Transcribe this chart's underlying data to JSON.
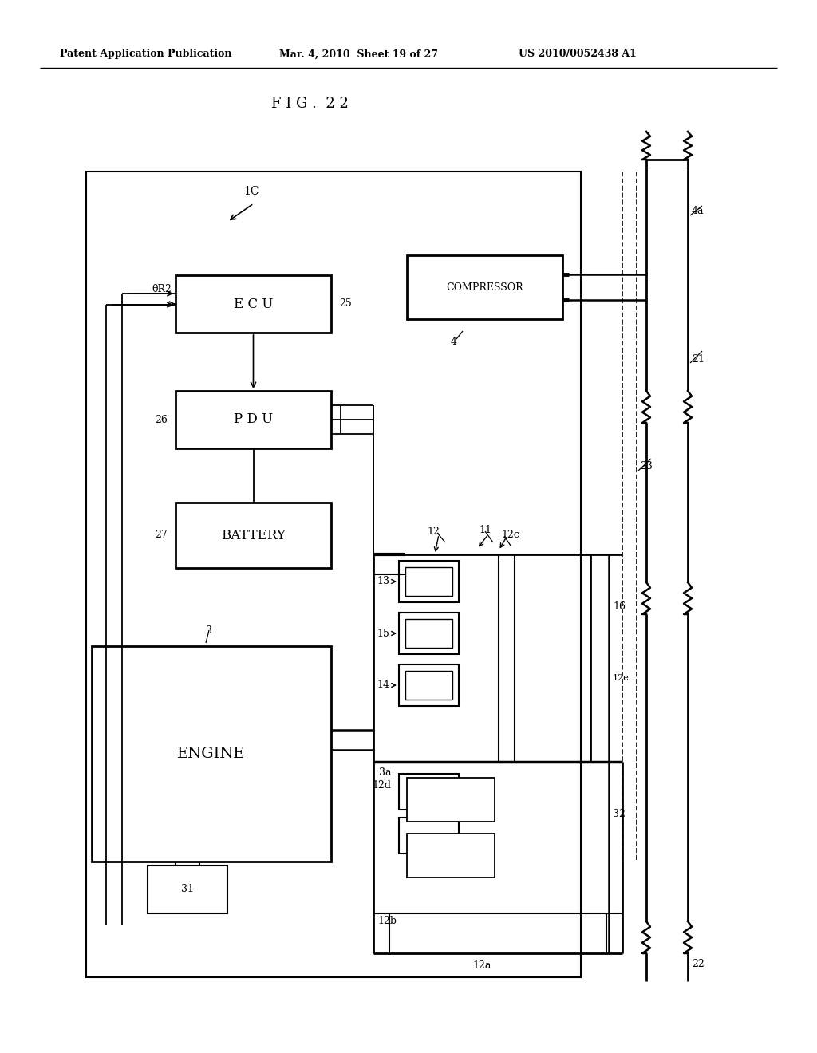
{
  "bg_color": "#ffffff",
  "text_color": "#000000",
  "header_left": "Patent Application Publication",
  "header_mid": "Mar. 4, 2010  Sheet 19 of 27",
  "header_right": "US 2010/0052438 A1",
  "fig_label": "F I G .  2 2",
  "label_1C": "1C",
  "label_ecu": "E C U",
  "label_ecu_ref": "25",
  "label_pdu": "P D U",
  "label_pdu_ref": "26",
  "label_battery": "BATTERY",
  "label_battery_ref": "27",
  "label_engine": "ENGINE",
  "label_engine_ref": "3",
  "label_compressor": "COMPRESSOR",
  "label_comp_ref": "4",
  "label_4a": "4a",
  "label_21": "21",
  "label_23": "23",
  "label_11": "11",
  "label_12": "12",
  "label_12a": "12a",
  "label_12b": "12b",
  "label_12c": "12c",
  "label_12d": "12d",
  "label_12e": "12e",
  "label_13": "13",
  "label_14": "14",
  "label_15": "15",
  "label_16": "16",
  "label_22": "22",
  "label_31": "31",
  "label_32": "32",
  "label_3a": "3a",
  "label_thetaR2": "θR2"
}
